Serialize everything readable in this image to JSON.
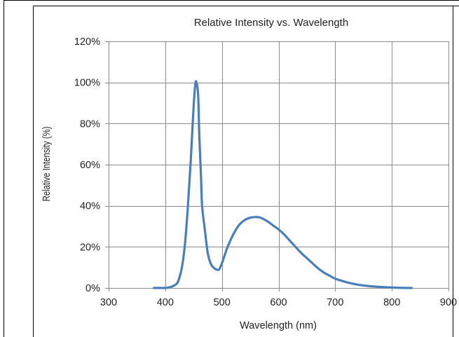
{
  "chart_data": {
    "type": "line",
    "title": "Relative Intensity  vs.  Wavelength",
    "xlabel": "Wavelength  (nm)",
    "ylabel": "Relative Intensity  (%)",
    "xlim": [
      300,
      900
    ],
    "ylim": [
      0,
      120
    ],
    "x_ticks": [
      300,
      400,
      500,
      600,
      700,
      800,
      900
    ],
    "x_tick_labels": [
      "300",
      "400",
      "500",
      "600",
      "700",
      "800",
      "900"
    ],
    "y_ticks": [
      0,
      20,
      40,
      60,
      80,
      100,
      120
    ],
    "y_tick_labels": [
      "0%",
      "20%",
      "40%",
      "60%",
      "80%",
      "100%",
      "120%"
    ],
    "grid": true,
    "legend": "none",
    "series": [
      {
        "color": "#4a7ebb",
        "x": [
          380,
          400,
          410,
          420,
          425,
          430,
          435,
          440,
          445,
          450,
          453,
          455,
          458,
          460,
          463,
          465,
          470,
          475,
          480,
          485,
          490,
          495,
          500,
          505,
          510,
          520,
          530,
          540,
          550,
          560,
          565,
          570,
          580,
          590,
          600,
          610,
          620,
          630,
          640,
          650,
          660,
          670,
          680,
          690,
          700,
          720,
          740,
          760,
          780,
          800,
          820,
          835
        ],
        "y": [
          0,
          0,
          0.5,
          2,
          5,
          11,
          22,
          40,
          62,
          88,
          99,
          100,
          94,
          75,
          55,
          40,
          28,
          17,
          12,
          10,
          9,
          9,
          12,
          16,
          20,
          26,
          30.5,
          33,
          34.2,
          34.5,
          34.4,
          34,
          32.5,
          30.5,
          28.5,
          26,
          23,
          20,
          17,
          14.5,
          12,
          9.5,
          7.5,
          6,
          4.5,
          2.8,
          1.6,
          0.9,
          0.5,
          0.2,
          0.05,
          0
        ]
      }
    ]
  },
  "style": {
    "line_color": "#4a7ebb",
    "grid_color": "#8c8c8c",
    "frame_color": "#000000"
  }
}
